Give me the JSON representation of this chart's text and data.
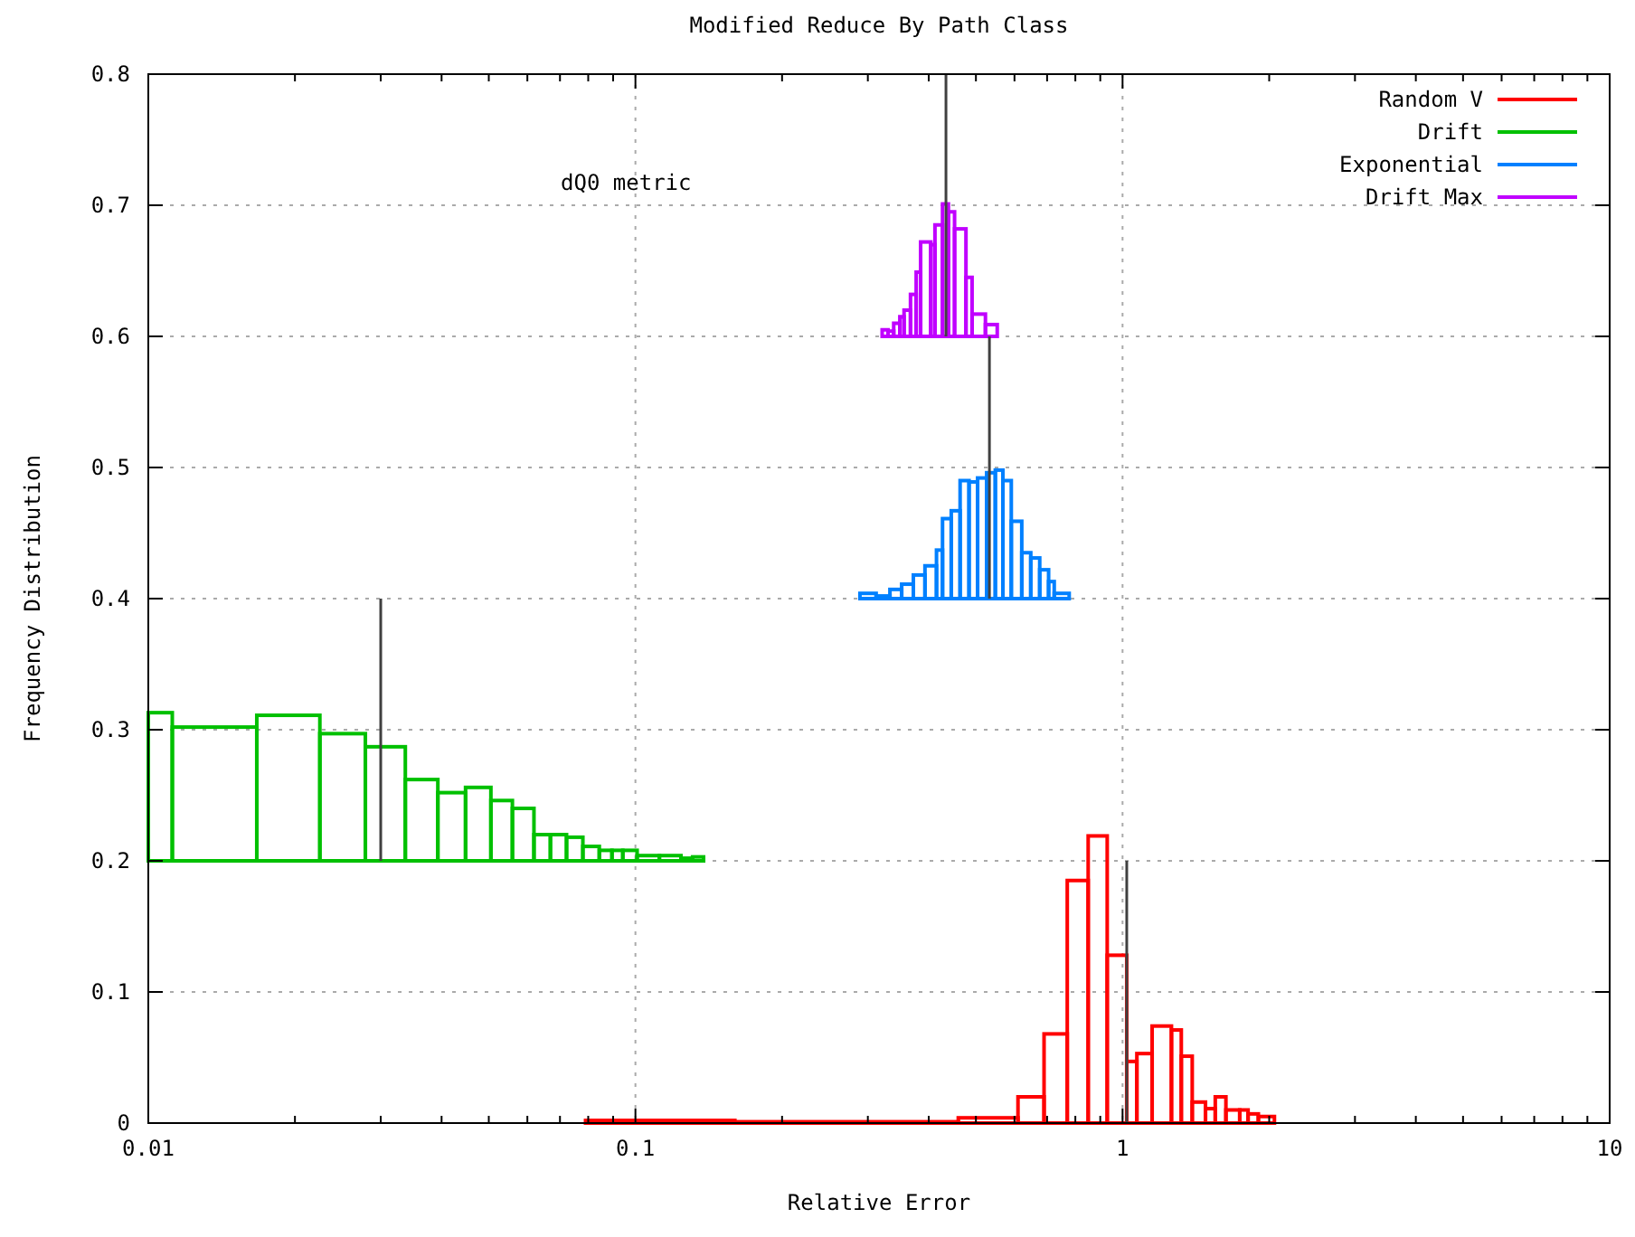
{
  "chart_data": {
    "type": "histogram",
    "title": "Modified Reduce By Path Class",
    "xlabel": "Relative Error",
    "ylabel": "Frequency Distribution",
    "annotations": [
      "dQ0 metric"
    ],
    "log": "x",
    "grid": true,
    "legend": "top right",
    "xlim": [
      0.01,
      10
    ],
    "xticks": [
      0.01,
      {
        "value": 0.02,
        "label": null
      },
      {
        "value": 0.03,
        "label": null
      },
      {
        "value": 0.04,
        "label": null
      },
      {
        "value": 0.05,
        "label": null
      },
      {
        "value": 0.06,
        "label": null
      },
      {
        "value": 0.07,
        "label": null
      },
      {
        "value": 0.08,
        "label": null
      },
      {
        "value": 0.09,
        "label": null
      },
      0.1,
      {
        "value": 0.2,
        "label": null
      },
      {
        "value": 0.3,
        "label": null
      },
      {
        "value": 0.4,
        "label": null
      },
      {
        "value": 0.5,
        "label": null
      },
      {
        "value": 0.6,
        "label": null
      },
      {
        "value": 0.7,
        "label": null
      },
      {
        "value": 0.8,
        "label": null
      },
      {
        "value": 0.9,
        "label": null
      },
      1,
      {
        "value": 2,
        "label": null
      },
      {
        "value": 3,
        "label": null
      },
      {
        "value": 4,
        "label": null
      },
      {
        "value": 5,
        "label": null
      },
      {
        "value": 6,
        "label": null
      },
      {
        "value": 7,
        "label": null
      },
      {
        "value": 8,
        "label": null
      },
      {
        "value": 9,
        "label": null
      },
      10
    ],
    "ylim": [
      0,
      0.8
    ],
    "yticks": [
      0,
      0.1,
      0.2,
      0.3,
      0.4,
      0.5,
      0.6,
      0.7,
      0.8
    ],
    "series": [
      {
        "name": "Random V",
        "color": "#ff0000",
        "bins": [
          0.079,
          0.16,
          0.46,
          0.61,
          0.69,
          0.77,
          0.85,
          0.93,
          1.02,
          1.07,
          1.15,
          1.26,
          1.32,
          1.39,
          1.48,
          1.55,
          1.63,
          1.74,
          1.81,
          1.9,
          2.05
        ],
        "values": [
          0.002,
          0.001,
          0.004,
          0.02,
          0.068,
          0.185,
          0.219,
          0.128,
          0.047,
          0.053,
          0.074,
          0.071,
          0.051,
          0.016,
          0.011,
          0.02,
          0.01,
          0.01,
          0.007,
          0.005
        ],
        "base": [
          0,
          0,
          0,
          0,
          0,
          0,
          0,
          0,
          0,
          0,
          0,
          0,
          0,
          0,
          0,
          0,
          0,
          0,
          0,
          0
        ]
      },
      {
        "name": "Drift",
        "color": "#00c000",
        "bins": [
          0.01,
          0.0112,
          0.0167,
          0.0225,
          0.0279,
          0.0337,
          0.0393,
          0.0448,
          0.0505,
          0.0559,
          0.0619,
          0.0669,
          0.0722,
          0.078,
          0.0843,
          0.0895,
          0.0942,
          0.1008,
          0.112,
          0.124,
          0.131,
          0.138
        ],
        "values": [
          0.113,
          0.102,
          0.111,
          0.097,
          0.087,
          0.062,
          0.052,
          0.056,
          0.046,
          0.04,
          0.02,
          0.02,
          0.018,
          0.011,
          0.008,
          0.008,
          0.008,
          0.004,
          0.004,
          0.002,
          0.003
        ],
        "base": [
          0.2,
          0.2,
          0.2,
          0.2,
          0.2,
          0.2,
          0.2,
          0.2,
          0.2,
          0.2,
          0.2,
          0.2,
          0.2,
          0.2,
          0.2,
          0.2,
          0.2,
          0.2,
          0.2,
          0.2,
          0.2
        ]
      },
      {
        "name": "Exponential",
        "color": "#0080ff",
        "bins": [
          0.289,
          0.312,
          0.333,
          0.352,
          0.372,
          0.393,
          0.415,
          0.427,
          0.445,
          0.464,
          0.484,
          0.504,
          0.526,
          0.548,
          0.568,
          0.591,
          0.621,
          0.648,
          0.676,
          0.705,
          0.724,
          0.777
        ],
        "values": [
          0.004,
          0.002,
          0.007,
          0.011,
          0.018,
          0.025,
          0.037,
          0.061,
          0.067,
          0.09,
          0.089,
          0.092,
          0.096,
          0.098,
          0.09,
          0.059,
          0.035,
          0.031,
          0.022,
          0.013,
          0.004
        ],
        "base": [
          0.4,
          0.4,
          0.4,
          0.4,
          0.4,
          0.4,
          0.4,
          0.4,
          0.4,
          0.4,
          0.4,
          0.4,
          0.4,
          0.4,
          0.4,
          0.4,
          0.4,
          0.4,
          0.4,
          0.4,
          0.4
        ]
      },
      {
        "name": "Drift Max",
        "color": "#c000ff",
        "bins": [
          0.321,
          0.33,
          0.339,
          0.349,
          0.356,
          0.367,
          0.377,
          0.385,
          0.404,
          0.412,
          0.427,
          0.439,
          0.452,
          0.477,
          0.491,
          0.523,
          0.553
        ],
        "values": [
          0.005,
          0.004,
          0.01,
          0.015,
          0.02,
          0.032,
          0.049,
          0.072,
          0.07,
          0.085,
          0.101,
          0.095,
          0.082,
          0.045,
          0.017,
          0.009
        ],
        "base": [
          0.6,
          0.6,
          0.6,
          0.6,
          0.6,
          0.6,
          0.6,
          0.6,
          0.6,
          0.6,
          0.6,
          0.6,
          0.6,
          0.6,
          0.6,
          0.6
        ]
      },
      {
        "type": "line",
        "color": "#404040",
        "x": [
          1.02,
          1.02
        ],
        "values": [
          0,
          0.2
        ]
      },
      {
        "type": "line",
        "color": "#404040",
        "x": [
          0.03,
          0.03
        ],
        "values": [
          0.2,
          0.4
        ]
      },
      {
        "type": "line",
        "color": "#404040",
        "x": [
          0.533,
          0.533
        ],
        "values": [
          0.4,
          0.6
        ]
      },
      {
        "type": "line",
        "color": "#404040",
        "x": [
          0.434,
          0.434
        ],
        "values": [
          0.6,
          0.8
        ]
      }
    ]
  }
}
